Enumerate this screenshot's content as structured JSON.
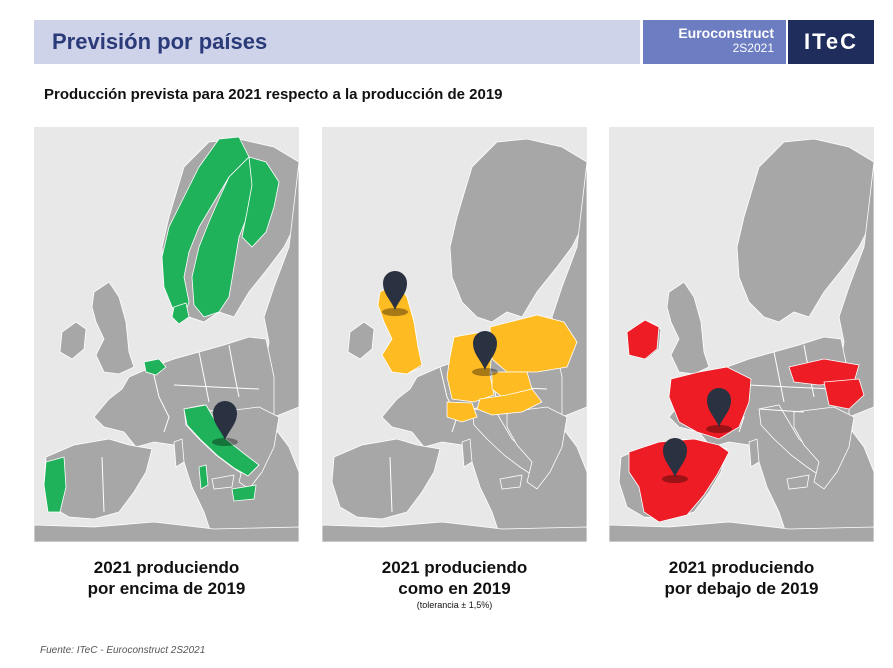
{
  "header": {
    "title": "Previsión por países"
  },
  "brand": {
    "name": "Euroconstruct",
    "edition": "2S2021",
    "logo": "ITeC"
  },
  "subtitle": "Producción prevista para 2021 respecto a la producción de 2019",
  "colors": {
    "above": "#1fb25a",
    "same": "#ffbb22",
    "below": "#ee1c24",
    "base": "#a7a7a7",
    "sea": "#e8e8e8",
    "pin": "#2a3140"
  },
  "panels": [
    {
      "id": "above",
      "label_line1": "2021 produciendo",
      "label_line2": "por encima de 2019",
      "note": "",
      "countries": [
        "Finlandia",
        "Suecia",
        "Noruega",
        "Dinamarca",
        "Bélgica",
        "Italia",
        "Portugal"
      ],
      "pinned": [
        "Italia"
      ],
      "icon": "map-pin-icon"
    },
    {
      "id": "same",
      "label_line1": "2021 produciendo",
      "label_line2": "como en 2019",
      "note": "(tolerancia ± 1,5%)",
      "countries": [
        "Reino Unido",
        "Alemania",
        "Polonia",
        "Chequia",
        "Austria",
        "Suiza"
      ],
      "pinned": [
        "Reino Unido",
        "Alemania"
      ],
      "icon": "map-pin-icon"
    },
    {
      "id": "below",
      "label_line1": "2021 produciendo",
      "label_line2": "por debajo de 2019",
      "note": "",
      "countries": [
        "Irlanda",
        "Francia",
        "España",
        "Eslovaquia",
        "Hungría"
      ],
      "pinned": [
        "Francia",
        "España"
      ],
      "icon": "map-pin-icon"
    }
  ],
  "source": "Fuente: ITeC - Euroconstruct 2S2021"
}
